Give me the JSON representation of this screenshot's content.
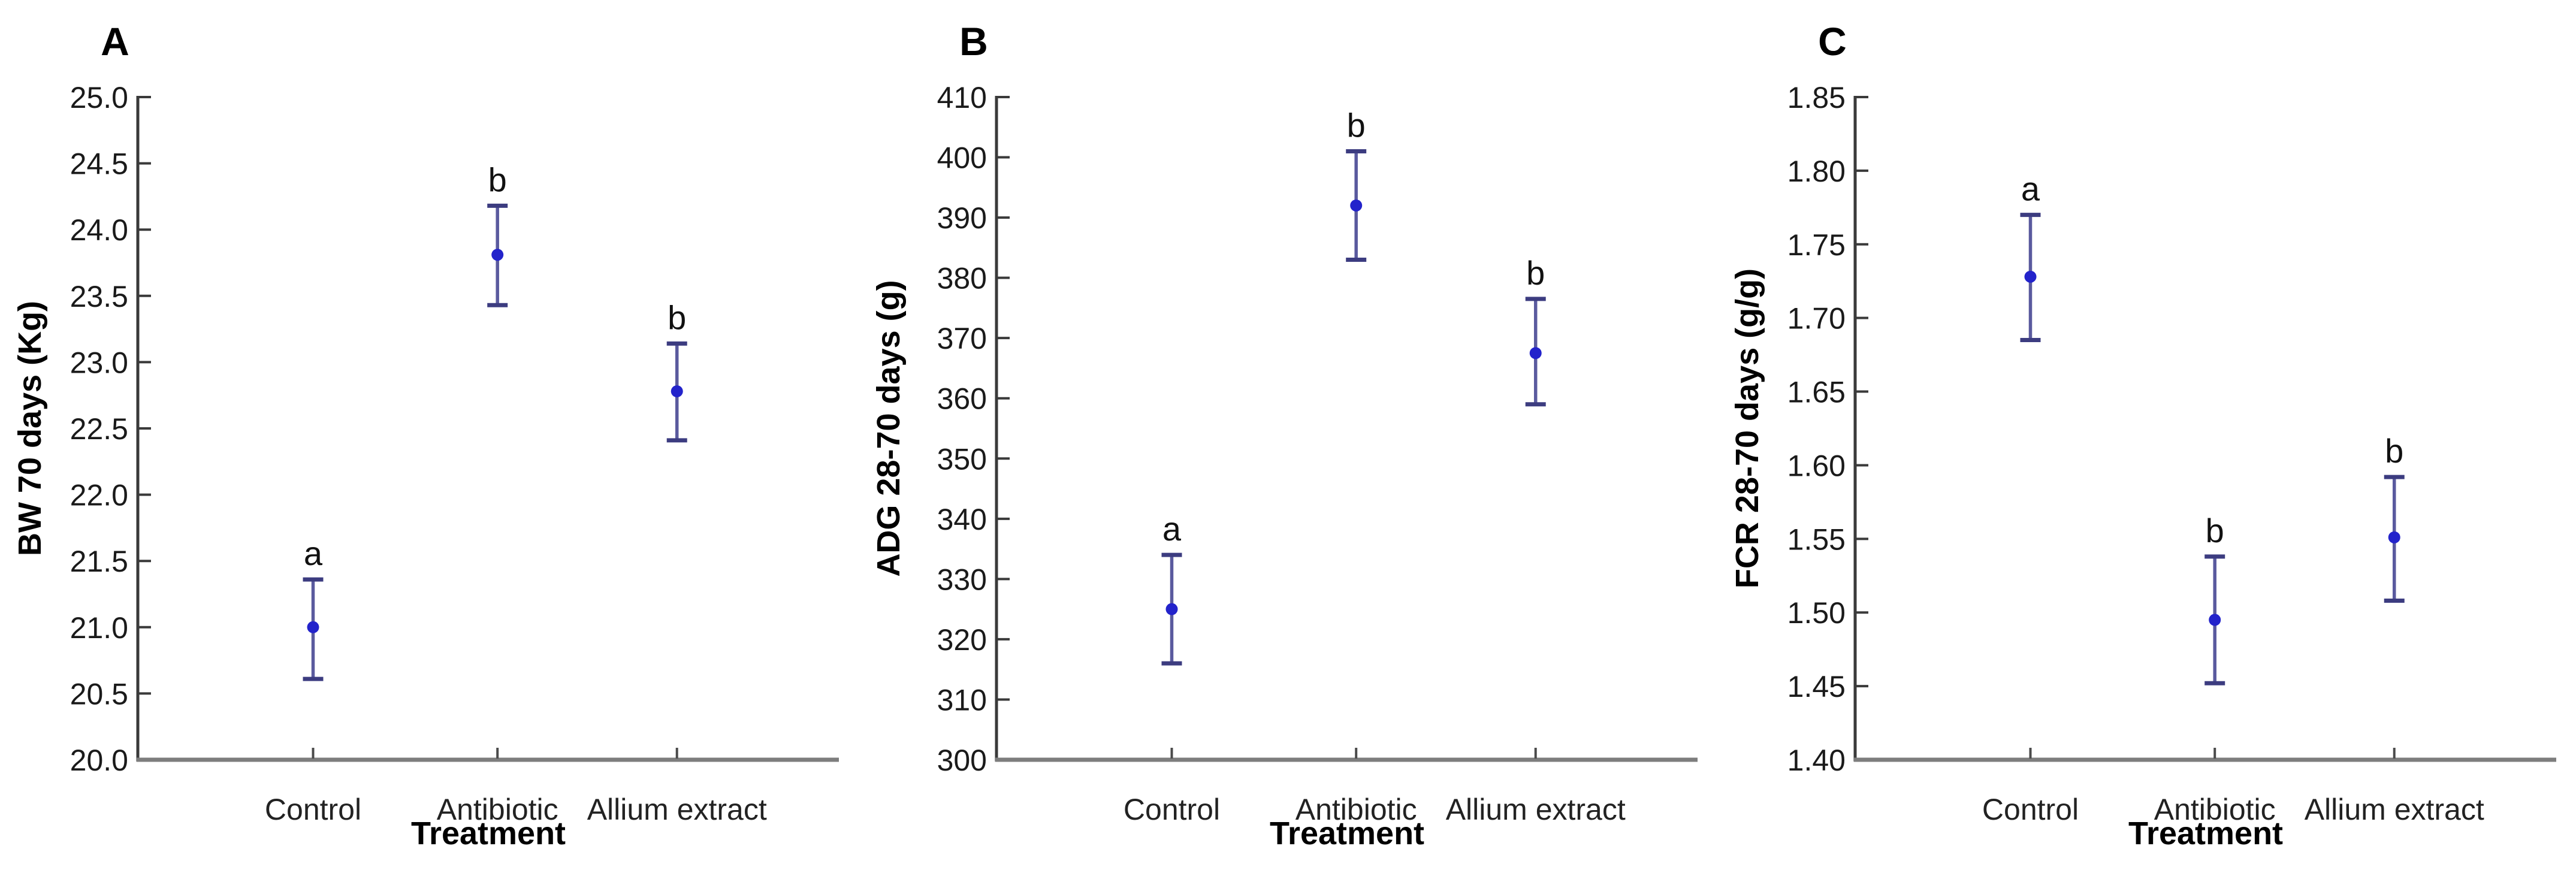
{
  "figure": {
    "background": "#ffffff",
    "panels_order": [
      "A",
      "B",
      "C"
    ]
  },
  "colors": {
    "y_axis": "#3a3a3a",
    "x_axis": "#7d7d7d",
    "tick": "#3a3a3a",
    "x_tick": "#4a4a4a",
    "tick_label": "#1a1a1a",
    "category_label": "#222222",
    "axis_title": "#000000",
    "panel_letter": "#000000",
    "sig_letter": "#111111",
    "error_line": "#5a5a9e",
    "error_cap": "#3c3c80",
    "point": "#2323cb"
  },
  "chart_data": [
    {
      "type": "scatter",
      "panel_label": "A",
      "title": "",
      "xlabel": "Treatment",
      "ylabel": "BW 70 days (Kg)",
      "ylim": [
        20.0,
        25.0
      ],
      "ytick_step": 0.5,
      "ytick_labels": [
        "20.0",
        "20.5",
        "21.0",
        "21.5",
        "22.0",
        "22.5",
        "23.0",
        "23.5",
        "24.0",
        "24.5",
        "25.0"
      ],
      "categories": [
        "Control",
        "Antibiotic",
        "Allium extract"
      ],
      "series": [
        {
          "name": "mean",
          "values": [
            21.0,
            23.81,
            22.78
          ]
        },
        {
          "name": "ci_low",
          "values": [
            20.61,
            23.43,
            22.41
          ]
        },
        {
          "name": "ci_high",
          "values": [
            21.36,
            24.18,
            23.14
          ]
        }
      ],
      "annotations": [
        "a",
        "b",
        "b"
      ],
      "grid": false,
      "legend": "none"
    },
    {
      "type": "scatter",
      "panel_label": "B",
      "title": "",
      "xlabel": "Treatment",
      "ylabel": "ADG 28-70 days (g)",
      "ylim": [
        300,
        410
      ],
      "ytick_step": 10,
      "ytick_labels": [
        "300",
        "310",
        "320",
        "330",
        "340",
        "350",
        "360",
        "370",
        "380",
        "390",
        "400",
        "410"
      ],
      "categories": [
        "Control",
        "Antibiotic",
        "Allium extract"
      ],
      "series": [
        {
          "name": "mean",
          "values": [
            325,
            392,
            367.5
          ]
        },
        {
          "name": "ci_low",
          "values": [
            316,
            383,
            359
          ]
        },
        {
          "name": "ci_high",
          "values": [
            334,
            401,
            376.5
          ]
        }
      ],
      "annotations": [
        "a",
        "b",
        "b"
      ],
      "grid": false,
      "legend": "none"
    },
    {
      "type": "scatter",
      "panel_label": "C",
      "title": "",
      "xlabel": "Treatment",
      "ylabel": "FCR 28-70 days (g/g)",
      "ylim": [
        1.4,
        1.85
      ],
      "ytick_step": 0.05,
      "ytick_labels": [
        "1.40",
        "1.45",
        "1.50",
        "1.55",
        "1.60",
        "1.65",
        "1.70",
        "1.75",
        "1.80",
        "1.85"
      ],
      "categories": [
        "Control",
        "Antibiotic",
        "Allium extract"
      ],
      "series": [
        {
          "name": "mean",
          "values": [
            1.728,
            1.495,
            1.551
          ]
        },
        {
          "name": "ci_low",
          "values": [
            1.685,
            1.452,
            1.508
          ]
        },
        {
          "name": "ci_high",
          "values": [
            1.77,
            1.538,
            1.592
          ]
        }
      ],
      "annotations": [
        "a",
        "b",
        "b"
      ],
      "grid": false,
      "legend": "none"
    }
  ]
}
